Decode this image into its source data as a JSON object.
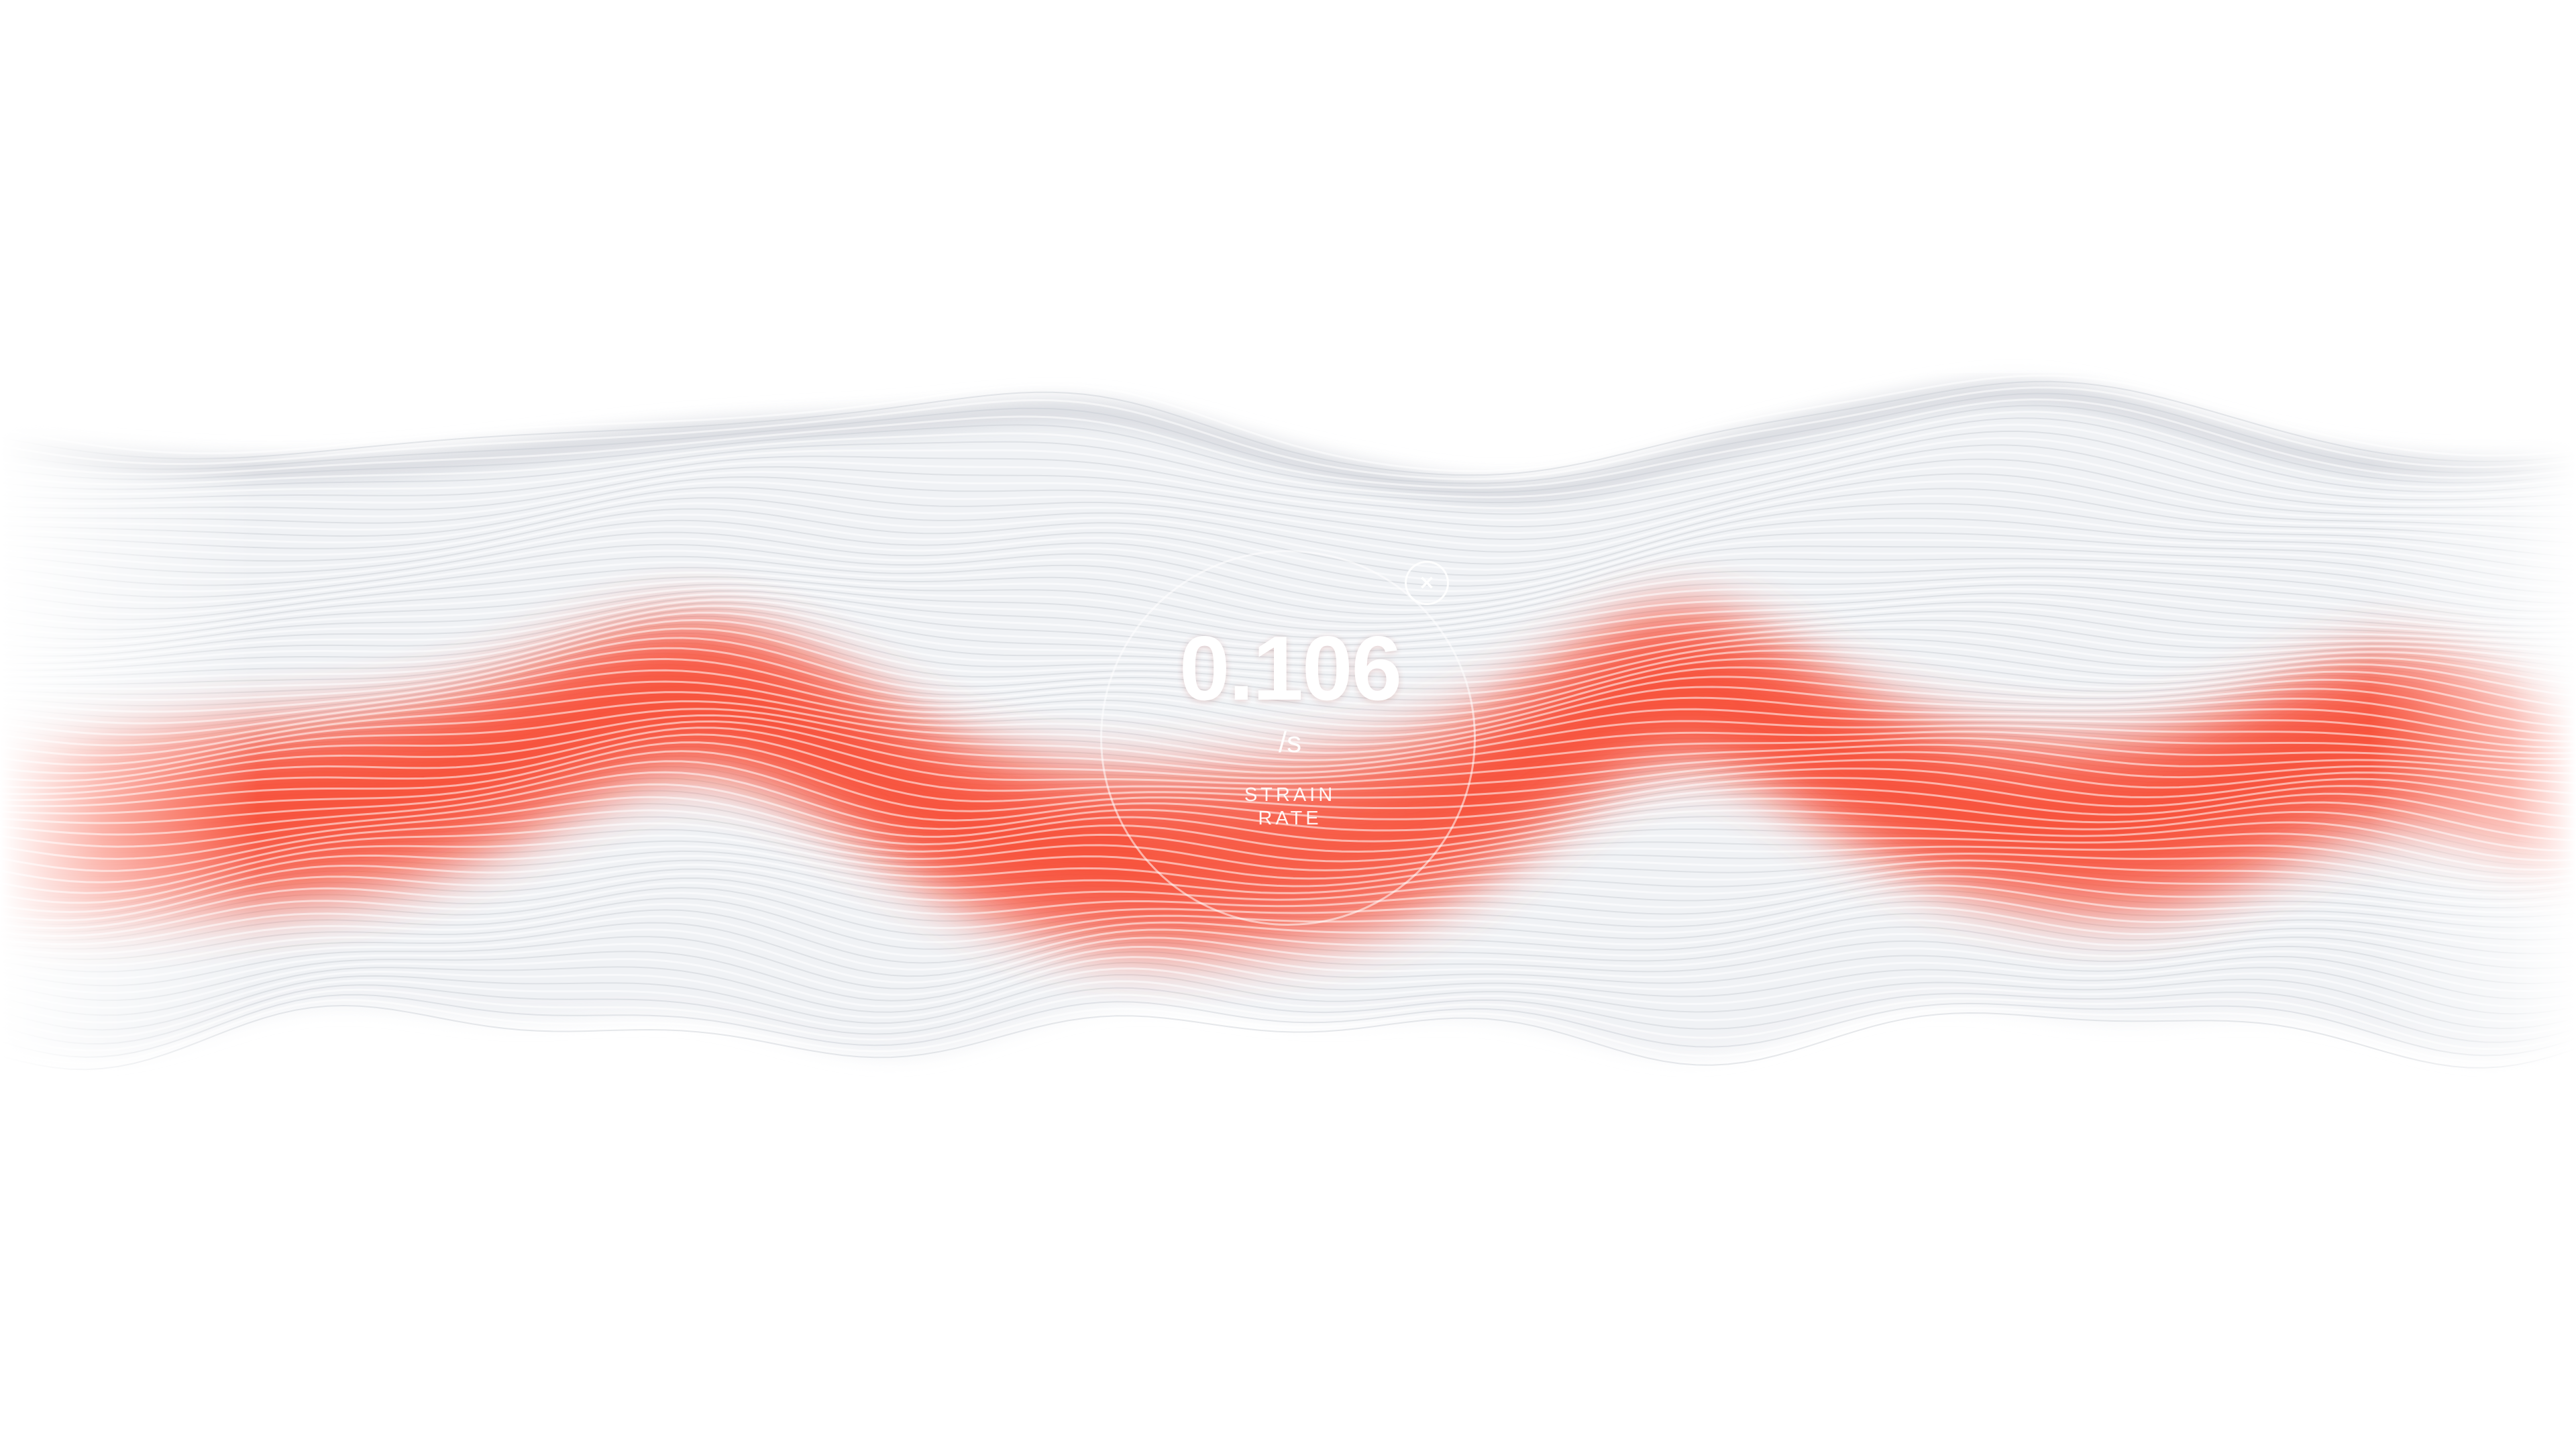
{
  "readout": {
    "value": "0.106",
    "unit": "/s",
    "label_line1": "STRAIN",
    "label_line2": "RATE"
  },
  "close_button": {
    "icon": "close-icon",
    "glyph": "×"
  },
  "colors": {
    "accent": "#f9533e",
    "neutral_line": "#c8cbd3",
    "highlight_line": "#ffffff",
    "background": "#ffffff"
  }
}
